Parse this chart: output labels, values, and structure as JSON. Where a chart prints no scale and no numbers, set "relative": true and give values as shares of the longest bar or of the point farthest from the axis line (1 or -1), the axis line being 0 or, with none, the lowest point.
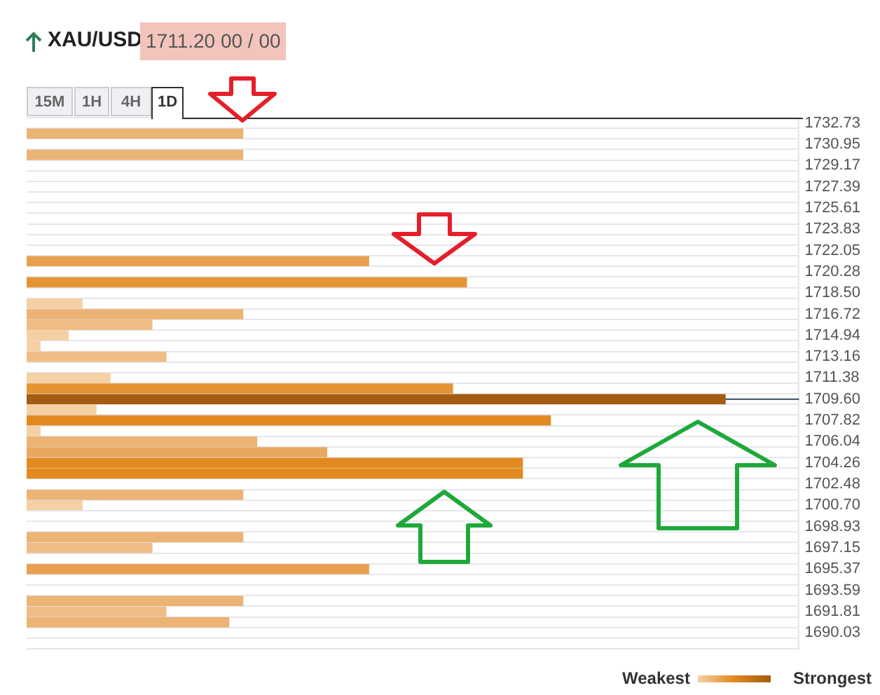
{
  "chart_data": {
    "type": "bar",
    "orientation": "horizontal",
    "relative": true,
    "title": "XAU/USD",
    "subtitle": "1711.20 00 / 00",
    "annotations": [
      "15M",
      "1H",
      "4H",
      "1D",
      "Weakest",
      "Strongest"
    ],
    "categories": [
      "1732.73",
      null,
      "1730.95",
      null,
      "1729.17",
      null,
      "1727.39",
      null,
      "1725.61",
      null,
      "1723.83",
      null,
      "1722.05",
      null,
      "1720.28",
      null,
      "1718.50",
      null,
      "1716.72",
      null,
      "1714.94",
      null,
      "1713.16",
      null,
      "1711.38",
      null,
      "1709.60",
      null,
      "1707.82",
      null,
      "1706.04",
      null,
      "1704.26",
      null,
      "1702.48",
      null,
      "1700.70",
      null,
      "1698.93",
      null,
      "1697.15",
      null,
      "1695.37",
      null,
      "1693.59",
      null,
      "1691.81",
      null,
      "1690.03",
      null
    ],
    "values": [
      null,
      0.31,
      null,
      0.31,
      null,
      null,
      null,
      null,
      null,
      null,
      null,
      null,
      null,
      0.49,
      null,
      0.63,
      null,
      0.08,
      0.31,
      0.18,
      0.06,
      0.02,
      0.2,
      null,
      0.12,
      0.61,
      1,
      0.1,
      0.75,
      0.02,
      0.33,
      0.43,
      0.71,
      0.71,
      null,
      0.31,
      0.08,
      null,
      null,
      0.31,
      0.18,
      null,
      0.49,
      null,
      null,
      0.31,
      0.2,
      0.29,
      null,
      null
    ],
    "colors": [
      null,
      "#ebb374",
      null,
      "#ebb374",
      null,
      null,
      null,
      null,
      null,
      null,
      null,
      null,
      null,
      "#e8a04f",
      null,
      "#e59433",
      null,
      "#f5d0a4",
      "#ebb374",
      "#f0bd84",
      "#f5d0a4",
      "#f5d0a4",
      "#f0bd84",
      null,
      "#f5d0a4",
      "#e59433",
      "#a35c12",
      "#f5d0a4",
      "#e2891f",
      "#f5d0a4",
      "#ebb374",
      "#e9a860",
      "#e2891f",
      "#e2891f",
      null,
      "#ebb374",
      "#f5d0a4",
      null,
      null,
      "#ebb374",
      "#f0bd84",
      null,
      "#e8a04f",
      null,
      null,
      "#ebb374",
      "#f0bd84",
      "#ebb374",
      null,
      null
    ],
    "ref_lines": [
      {
        "axis": "y",
        "value": "1709.60",
        "color": "#34495e"
      }
    ],
    "grid": true
  }
}
